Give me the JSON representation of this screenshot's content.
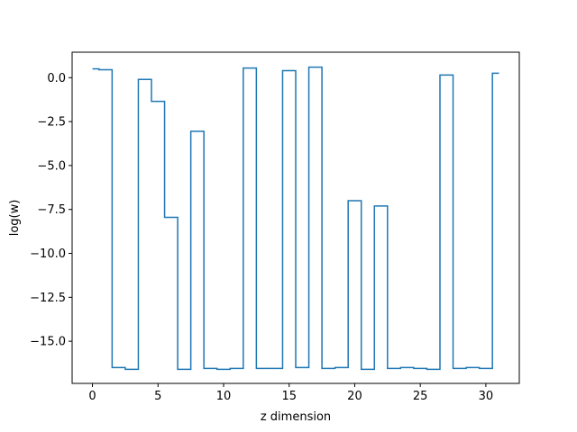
{
  "chart_data": {
    "type": "line",
    "drawstyle": "steps-mid",
    "title": "",
    "xlabel": "z dimension",
    "ylabel": "log(w)",
    "xlim": [
      -1.55,
      32.55
    ],
    "ylim": [
      -17.4,
      1.45
    ],
    "grid": false,
    "legend": "none",
    "xticks": [
      0,
      5,
      10,
      15,
      20,
      25,
      30
    ],
    "xtick_labels": [
      "0",
      "5",
      "10",
      "15",
      "20",
      "25",
      "30"
    ],
    "yticks": [
      0.0,
      -2.5,
      -5.0,
      -7.5,
      -10.0,
      -12.5,
      -15.0
    ],
    "ytick_labels": [
      "0.0",
      "−2.5",
      "−5.0",
      "−7.5",
      "−10.0",
      "−12.5",
      "−15.0"
    ],
    "line_color": "#1f77b4",
    "series": [
      {
        "x": [
          0,
          1,
          2,
          3,
          4,
          5,
          6,
          7,
          8,
          9,
          10,
          11,
          12,
          13,
          14,
          15,
          16,
          17,
          18,
          19,
          20,
          21,
          22,
          23,
          24,
          25,
          26,
          27,
          28,
          29,
          30,
          31
        ],
        "values": [
          0.5,
          0.45,
          -16.5,
          -16.6,
          -0.1,
          -1.35,
          -7.95,
          -16.6,
          -3.05,
          -16.55,
          -16.6,
          -16.55,
          0.55,
          -16.55,
          -16.55,
          0.4,
          -16.5,
          0.6,
          -16.55,
          -16.5,
          -7.0,
          -16.6,
          -7.3,
          -16.55,
          -16.5,
          -16.55,
          -16.6,
          0.15,
          -16.55,
          -16.5,
          -16.55,
          0.25
        ]
      }
    ]
  }
}
